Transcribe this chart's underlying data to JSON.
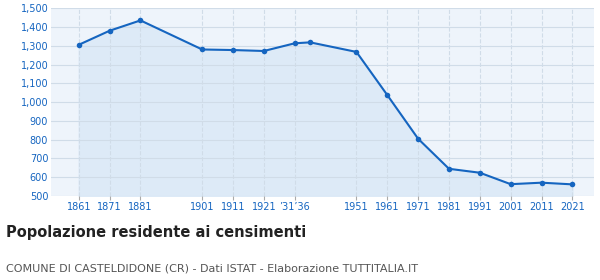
{
  "years": [
    1861,
    1871,
    1881,
    1901,
    1911,
    1921,
    1931,
    1936,
    1951,
    1961,
    1971,
    1981,
    1991,
    2001,
    2011,
    2021
  ],
  "population": [
    1306,
    1381,
    1436,
    1281,
    1278,
    1273,
    1314,
    1319,
    1268,
    1038,
    805,
    645,
    624,
    563,
    571,
    562
  ],
  "line_color": "#1565c0",
  "fill_color": "#ddeaf7",
  "marker_color": "#1565c0",
  "bg_color": "#eef4fb",
  "grid_color": "#d0dce8",
  "ylim": [
    500,
    1500
  ],
  "yticks": [
    500,
    600,
    700,
    800,
    900,
    1000,
    1100,
    1200,
    1300,
    1400,
    1500
  ],
  "title": "Popolazione residente ai censimenti",
  "subtitle": "COMUNE DI CASTELDIDONE (CR) - Dati ISTAT - Elaborazione TUTTITALIA.IT",
  "title_fontsize": 10.5,
  "subtitle_fontsize": 8,
  "tick_label_color": "#1565c0",
  "xlim_left": 1852,
  "xlim_right": 2028
}
